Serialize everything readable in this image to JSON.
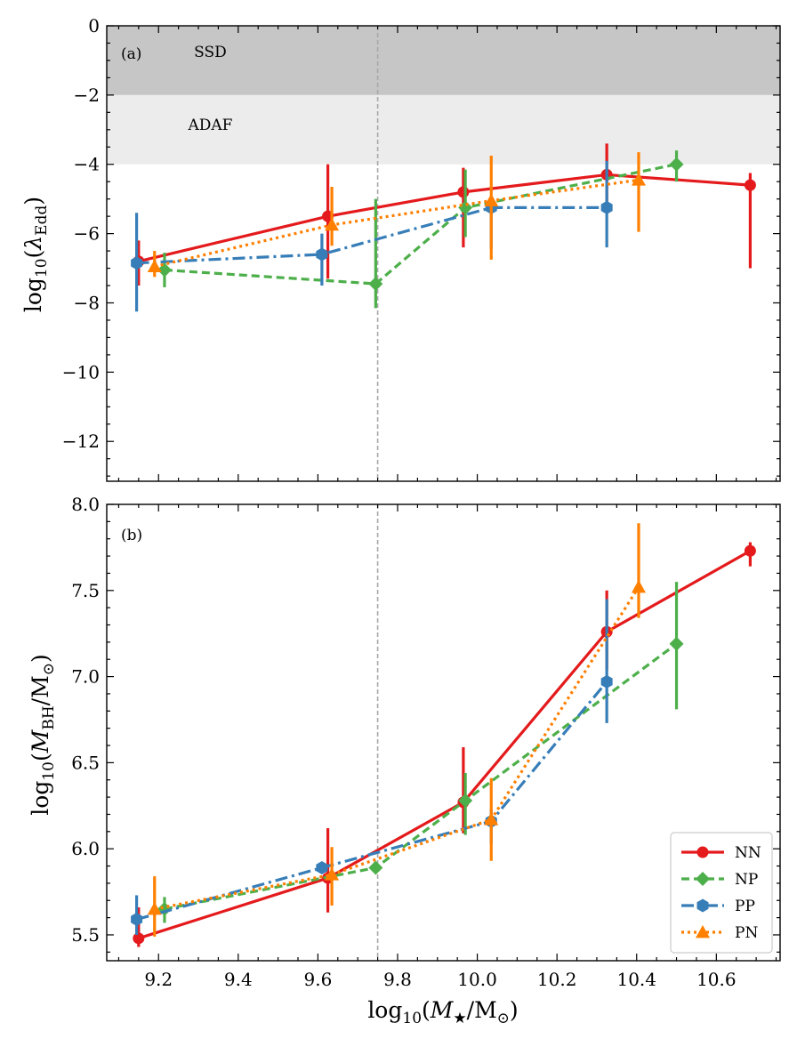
{
  "chart_data": [
    {
      "type": "line",
      "panel_label": "(a)",
      "xlabel": "log10(M★/M⊙)",
      "ylabel": "log10(λEdd)",
      "xlim": [
        9.07,
        10.76
      ],
      "ylim": [
        -13.15,
        0
      ],
      "x_ticks": [
        9.2,
        9.4,
        9.6,
        9.8,
        10.0,
        10.2,
        10.4,
        10.6
      ],
      "y_ticks": [
        0,
        -2,
        -4,
        -6,
        -8,
        -10,
        -12
      ],
      "y_tick_labels": [
        "0",
        "−2",
        "−4",
        "−6",
        "−8",
        "−10",
        "−12"
      ],
      "vline_x": 9.75,
      "bands": [
        {
          "label": "SSD",
          "y_from": -2,
          "y_to": 0,
          "color": "#c6c6c6",
          "label_x": 9.33,
          "label_y": -0.75
        },
        {
          "label": "ADAF",
          "y_from": -4,
          "y_to": -2,
          "color": "#ececec",
          "label_x": 9.33,
          "label_y": -2.85
        }
      ],
      "series": [
        {
          "name": "NN",
          "color": "#e41a1c",
          "marker": "circle",
          "dash": "",
          "x": [
            9.15,
            9.625,
            9.965,
            10.325,
            10.685
          ],
          "y": [
            -6.8,
            -5.5,
            -4.8,
            -4.3,
            -4.6
          ],
          "err": [
            [
              0.7,
              0.6
            ],
            [
              1.8,
              1.5
            ],
            [
              1.6,
              0.7
            ],
            [
              0.85,
              0.9
            ],
            [
              2.4,
              0.35
            ]
          ]
        },
        {
          "name": "NP",
          "color": "#4daf4a",
          "marker": "diamond",
          "dash": "9 5",
          "x": [
            9.215,
            9.745,
            9.97,
            10.5
          ],
          "y": [
            -7.05,
            -7.45,
            -5.25,
            -4.0
          ],
          "err": [
            [
              0.5,
              0.5
            ],
            [
              0.7,
              2.45
            ],
            [
              0.85,
              1.1
            ],
            [
              0.5,
              0.4
            ]
          ]
        },
        {
          "name": "PP",
          "color": "#377eb8",
          "marker": "hexagon",
          "dash": "14 5 3 5",
          "x": [
            9.145,
            9.61,
            10.035,
            10.325
          ],
          "y": [
            -6.85,
            -6.6,
            -5.25,
            -5.25
          ],
          "err": [
            [
              1.4,
              1.45
            ],
            [
              0.9,
              0.6
            ],
            [
              1.2,
              0.15
            ],
            [
              1.15,
              1.35
            ]
          ]
        },
        {
          "name": "PN",
          "color": "#ff7f00",
          "marker": "triangle",
          "dash": "3 4",
          "x": [
            9.19,
            9.635,
            10.035,
            10.405
          ],
          "y": [
            -6.95,
            -5.75,
            -5.05,
            -4.45
          ],
          "err": [
            [
              0.3,
              0.45
            ],
            [
              0.6,
              1.1
            ],
            [
              1.7,
              1.3
            ],
            [
              1.5,
              0.8
            ]
          ]
        }
      ]
    },
    {
      "type": "line",
      "panel_label": "(b)",
      "xlabel": "log10(M★/M⊙)",
      "ylabel": "log10(MBH/M⊙)",
      "xlim": [
        9.07,
        10.76
      ],
      "ylim": [
        5.35,
        8.0
      ],
      "x_ticks": [
        9.2,
        9.4,
        9.6,
        9.8,
        10.0,
        10.2,
        10.4,
        10.6
      ],
      "x_tick_labels": [
        "9.2",
        "9.4",
        "9.6",
        "9.8",
        "10.0",
        "10.2",
        "10.4",
        "10.6"
      ],
      "y_ticks": [
        5.5,
        6.0,
        6.5,
        7.0,
        7.5,
        8.0
      ],
      "y_tick_labels": [
        "5.5",
        "6.0",
        "6.5",
        "7.0",
        "7.5",
        "8.0"
      ],
      "vline_x": 9.75,
      "legend": {
        "placement": "lower-right",
        "entries": [
          "NN",
          "NP",
          "PP",
          "PN"
        ]
      },
      "series": [
        {
          "name": "NN",
          "color": "#e41a1c",
          "marker": "circle",
          "dash": "",
          "x": [
            9.15,
            9.625,
            9.965,
            10.325,
            10.685
          ],
          "y": [
            5.48,
            5.83,
            6.27,
            7.26,
            7.73
          ],
          "err": [
            [
              0.05,
              0.18
            ],
            [
              0.2,
              0.29
            ],
            [
              0.18,
              0.32
            ],
            [
              0.22,
              0.24
            ],
            [
              0.09,
              0.05
            ]
          ]
        },
        {
          "name": "NP",
          "color": "#4daf4a",
          "marker": "diamond",
          "dash": "9 5",
          "x": [
            9.215,
            9.745,
            9.97,
            10.5
          ],
          "y": [
            5.65,
            5.89,
            6.28,
            7.19
          ],
          "err": [
            [
              0.08,
              0.07
            ],
            [
              0.0,
              0.0
            ],
            [
              0.2,
              0.16
            ],
            [
              0.38,
              0.36
            ]
          ]
        },
        {
          "name": "PP",
          "color": "#377eb8",
          "marker": "hexagon",
          "dash": "14 5 3 5",
          "x": [
            9.145,
            9.61,
            10.035,
            10.325
          ],
          "y": [
            5.59,
            5.89,
            6.16,
            6.97
          ],
          "err": [
            [
              0.09,
              0.14
            ],
            [
              0.03,
              0.03
            ],
            [
              0.13,
              0.07
            ],
            [
              0.24,
              0.48
            ]
          ]
        },
        {
          "name": "PN",
          "color": "#ff7f00",
          "marker": "triangle",
          "dash": "3 4",
          "x": [
            9.19,
            9.635,
            10.035,
            10.405
          ],
          "y": [
            5.65,
            5.85,
            6.17,
            7.52
          ],
          "err": [
            [
              0.16,
              0.19
            ],
            [
              0.18,
              0.16
            ],
            [
              0.24,
              0.24
            ],
            [
              0.18,
              0.37
            ]
          ]
        }
      ]
    }
  ]
}
